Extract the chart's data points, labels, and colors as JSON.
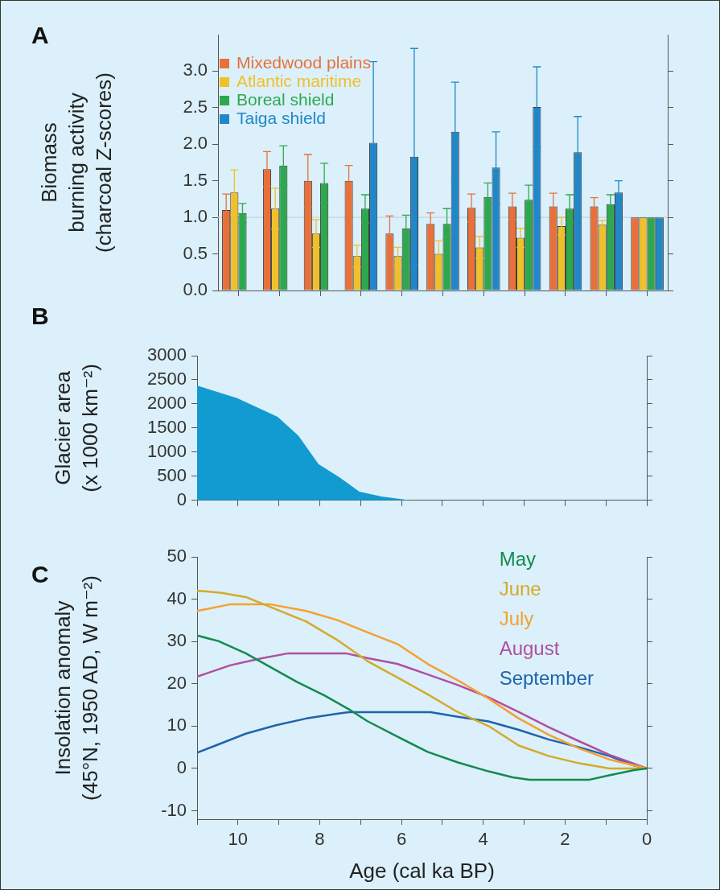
{
  "chart_data": [
    {
      "type": "bar",
      "title": "A",
      "ylabel": "Biomass\nburning activity\n(charcoal Z-scores)",
      "categories": [
        null,
        null,
        null,
        null,
        null,
        null,
        null,
        null,
        null,
        null,
        null
      ],
      "ylim": [
        0,
        3.5
      ],
      "yticks": [
        {
          "value": 0,
          "label": "0.0"
        },
        {
          "value": 0.5,
          "label": "0.5"
        },
        {
          "value": 1,
          "label": "1.0"
        },
        {
          "value": 1.5,
          "label": "1.5"
        },
        {
          "value": 2,
          "label": "2.0"
        },
        {
          "value": 2.5,
          "label": "2.5"
        },
        {
          "value": 3,
          "label": "3.0"
        }
      ],
      "tick_labels": "y",
      "grid": false,
      "legend": "top left",
      "ref_lines": [
        {
          "axis": "y",
          "value": 1,
          "color": "#c5d3db"
        }
      ],
      "series": [
        {
          "name": "Mixedwood plains",
          "color": "#e8703a",
          "values": [
            1.1,
            1.66,
            1.5,
            1.5,
            0.78,
            0.91,
            1.13,
            1.15,
            1.15,
            1.15,
            1.0
          ],
          "errors": [
            0.22,
            0.24,
            0.36,
            0.21,
            0.24,
            0.15,
            0.19,
            0.18,
            0.18,
            0.12,
            null
          ]
        },
        {
          "name": "Atlantic maritime",
          "color": "#f0c02a",
          "values": [
            1.34,
            1.12,
            0.78,
            0.47,
            0.47,
            0.5,
            0.59,
            0.72,
            0.88,
            0.9,
            1.0
          ],
          "errors": [
            0.31,
            0.28,
            0.19,
            0.15,
            0.12,
            0.18,
            0.15,
            0.13,
            0.12,
            0.06,
            null
          ]
        },
        {
          "name": "Boreal shield",
          "color": "#2ea84f",
          "values": [
            1.06,
            1.71,
            1.47,
            1.12,
            0.85,
            0.91,
            1.28,
            1.24,
            1.12,
            1.18,
            1.0
          ],
          "errors": [
            0.13,
            0.27,
            0.27,
            0.19,
            0.18,
            0.21,
            0.19,
            0.2,
            0.19,
            0.13,
            null
          ]
        },
        {
          "name": "Taiga shield",
          "color": "#2187c8",
          "values": [
            null,
            null,
            null,
            2.02,
            1.83,
            2.17,
            1.68,
            2.51,
            1.89,
            1.34,
            1.0
          ],
          "errors": [
            null,
            null,
            null,
            1.11,
            1.48,
            0.68,
            0.49,
            0.55,
            0.49,
            0.16,
            null
          ]
        }
      ]
    },
    {
      "type": "area",
      "title": "B",
      "ylabel": "Glacier area\n(x 1000 km⁻²)",
      "xlim": [
        11,
        0
      ],
      "xticks": [
        {
          "value": 11,
          "label": null
        },
        {
          "value": 10,
          "label": null
        },
        {
          "value": 9,
          "label": null
        },
        {
          "value": 8,
          "label": null
        },
        {
          "value": 7,
          "label": null
        },
        {
          "value": 6,
          "label": null
        },
        {
          "value": 5,
          "label": null
        },
        {
          "value": 4,
          "label": null
        },
        {
          "value": 3,
          "label": null
        },
        {
          "value": 2,
          "label": null
        },
        {
          "value": 1,
          "label": null
        },
        {
          "value": 0,
          "label": null
        }
      ],
      "ylim": [
        0,
        3000
      ],
      "yticks": [
        0,
        500,
        1000,
        1500,
        2000,
        2500,
        3000
      ],
      "tick_labels": "y",
      "grid": false,
      "series": [
        {
          "color": "#129bd0",
          "x": [
            11,
            10.02,
            9.53,
            9.03,
            8.52,
            8.03,
            7.5,
            7.03,
            6.49,
            5.77,
            0
          ],
          "values": [
            2380,
            2120,
            1930,
            1730,
            1340,
            750,
            470,
            180,
            80,
            0,
            0
          ]
        }
      ]
    },
    {
      "type": "line",
      "title": "C",
      "xlabel": "Age (cal ka BP)",
      "ylabel": "Insolation anomaly\n(45°N, 1950 AD, W m⁻²)",
      "xlim": [
        11,
        0
      ],
      "xticks": [
        {
          "value": 11,
          "label": null
        },
        10,
        {
          "value": 9,
          "label": null
        },
        8,
        {
          "value": 7,
          "label": null
        },
        6,
        {
          "value": 5,
          "label": null
        },
        4,
        {
          "value": 3,
          "label": null
        },
        2,
        {
          "value": 1,
          "label": null
        },
        0
      ],
      "ylim": [
        -12,
        50
      ],
      "yticks": [
        -10,
        0,
        10,
        20,
        30,
        40,
        50
      ],
      "grid": false,
      "legend": "top right",
      "marker": "none",
      "line_style": "solid",
      "series": [
        {
          "name": "May",
          "color": "#138a4f",
          "x": [
            11,
            10.48,
            9.81,
            9.22,
            8.55,
            7.88,
            7.29,
            6.84,
            6.1,
            5.36,
            4.62,
            3.87,
            3.28,
            2.87,
            1.42,
            0.9,
            0.31,
            0
          ],
          "values": [
            31.4,
            30.1,
            27.2,
            24.0,
            20.4,
            17.2,
            14.0,
            11.2,
            7.5,
            3.9,
            1.4,
            -0.7,
            -2.1,
            -2.7,
            -2.7,
            -1.6,
            -0.4,
            0
          ]
        },
        {
          "name": "June",
          "color": "#d4aa2a",
          "x": [
            11,
            10.41,
            9.81,
            9.07,
            8.33,
            7.58,
            6.84,
            6.1,
            5.36,
            4.62,
            3.87,
            3.13,
            2.39,
            1.65,
            0.91,
            0
          ],
          "values": [
            42.0,
            41.5,
            40.5,
            37.6,
            34.7,
            30.4,
            25.4,
            21.5,
            17.5,
            13.3,
            10.0,
            5.4,
            2.9,
            1.2,
            0,
            0
          ]
        },
        {
          "name": "July",
          "color": "#f5a031",
          "x": [
            11,
            10.18,
            9.22,
            8.33,
            7.58,
            6.84,
            6.1,
            5.36,
            4.62,
            3.87,
            3.13,
            2.39,
            1.65,
            0.91,
            0
          ],
          "values": [
            37.2,
            38.8,
            38.8,
            37.2,
            35.1,
            32.2,
            29.4,
            24.7,
            20.8,
            16.5,
            11.8,
            7.9,
            4.7,
            2.1,
            0
          ]
        },
        {
          "name": "August",
          "color": "#b04fa0",
          "x": [
            11,
            10.18,
            9.44,
            8.77,
            7.36,
            6.84,
            6.1,
            5.36,
            4.62,
            3.87,
            3.13,
            2.39,
            1.65,
            0.91,
            0
          ],
          "values": [
            21.7,
            24.4,
            26.0,
            27.2,
            27.2,
            26.1,
            24.7,
            22.2,
            19.7,
            16.8,
            13.3,
            9.7,
            6.4,
            3.2,
            0
          ]
        },
        {
          "name": "September",
          "color": "#1f63ae",
          "x": [
            11,
            10.55,
            9.81,
            9.07,
            8.33,
            7.58,
            7.29,
            5.29,
            4.62,
            3.87,
            3.13,
            2.39,
            1.65,
            0.91,
            0.31,
            0
          ],
          "values": [
            3.7,
            5.4,
            8.2,
            10.2,
            11.8,
            12.9,
            13.3,
            13.3,
            12.2,
            11.1,
            9.1,
            6.8,
            5.0,
            2.9,
            0.7,
            0
          ]
        }
      ]
    }
  ]
}
